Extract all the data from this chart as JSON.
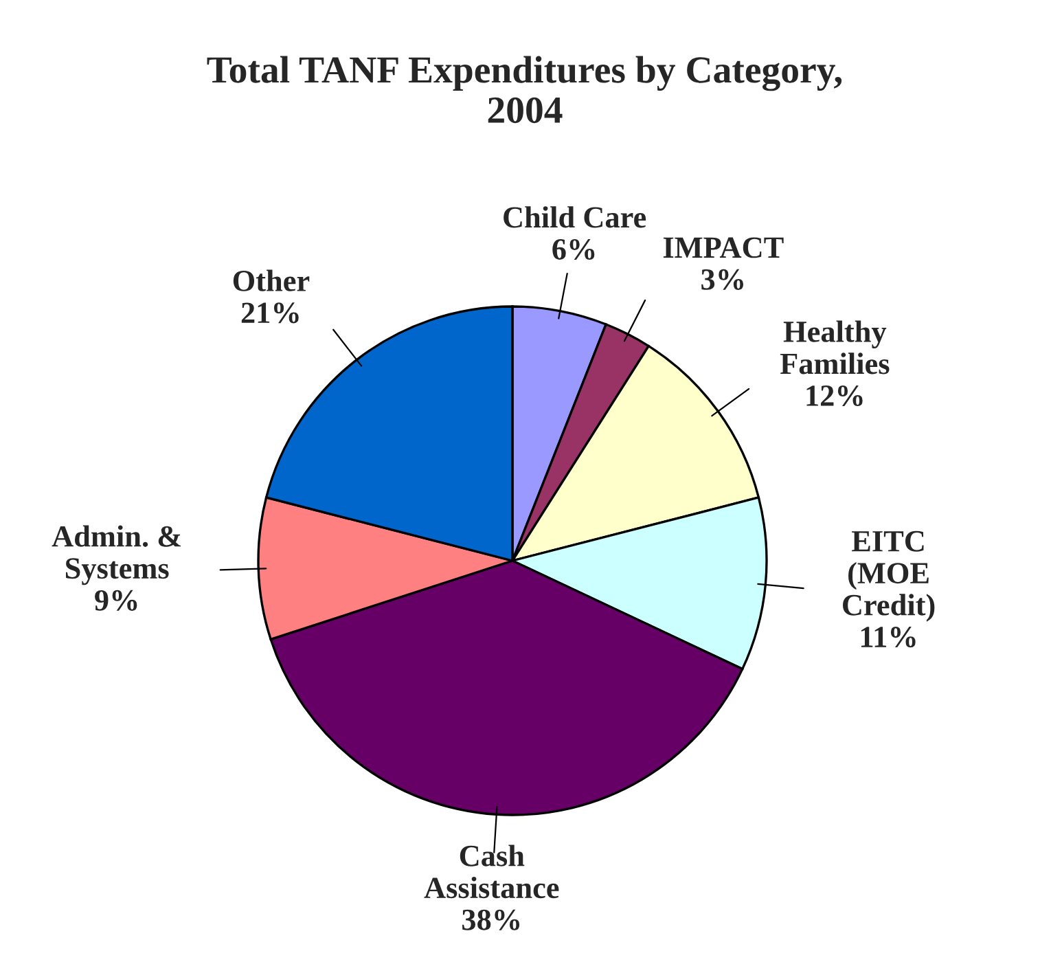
{
  "chart_data": {
    "type": "pie",
    "title": "Total TANF Expenditures by Category,\n2004",
    "categories": [
      "Child Care",
      "IMPACT",
      "Healthy\nFamilies",
      "EITC\n(MOE\nCredit)",
      "Cash\nAssistance",
      "Admin. &\nSystems",
      "Other"
    ],
    "values": [
      6,
      3,
      12,
      11,
      38,
      9,
      21
    ],
    "colors": [
      "#9999ff",
      "#993366",
      "#ffffcc",
      "#ccffff",
      "#660066",
      "#ff8080",
      "#0066cc"
    ],
    "value_labels": [
      "6%",
      "3%",
      "12%",
      "11%",
      "38%",
      "9%",
      "21%"
    ]
  }
}
